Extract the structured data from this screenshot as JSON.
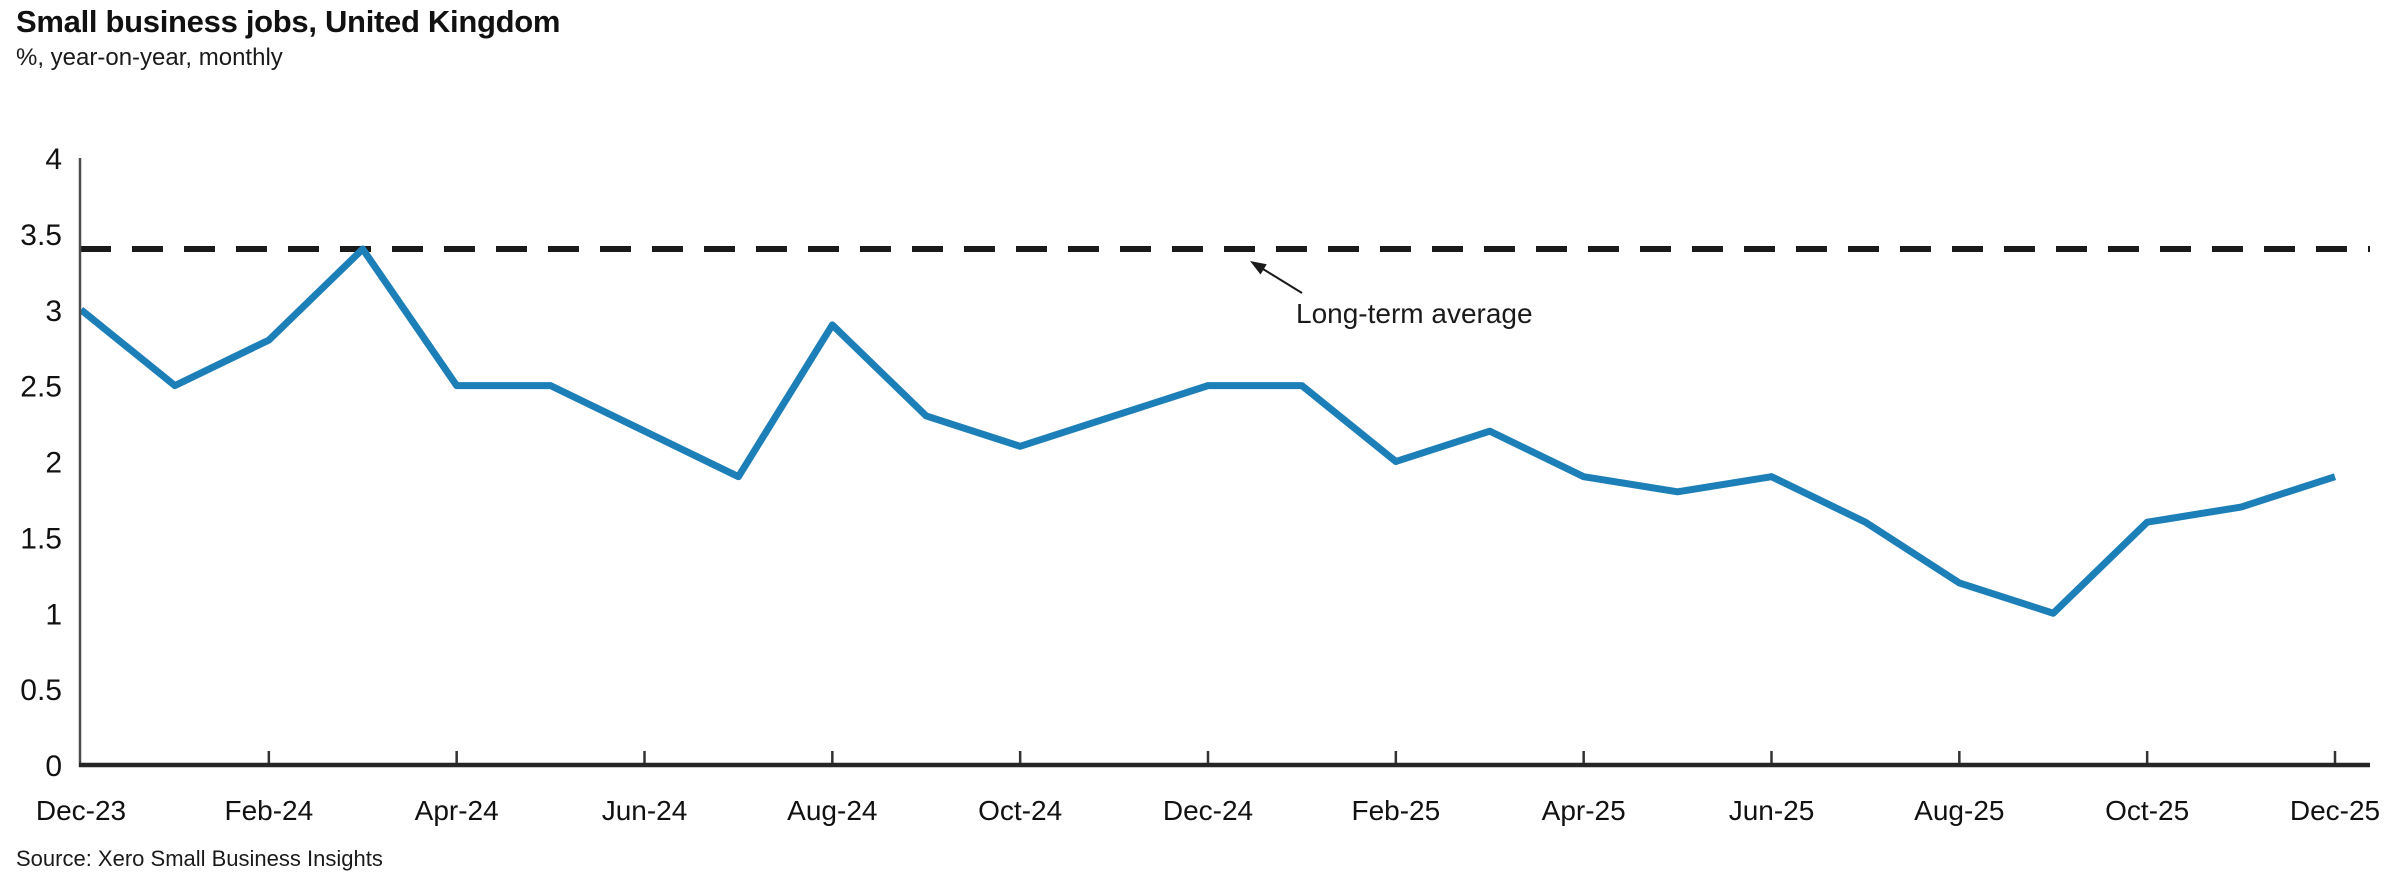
{
  "header": {
    "title": "Small business jobs, United Kingdom",
    "subtitle": "%, year-on-year, monthly"
  },
  "footer": {
    "source": "Source: Xero Small Business Insights"
  },
  "chart_data": {
    "type": "line",
    "title": "Small business jobs, United Kingdom",
    "subtitle": "%, year-on-year, monthly",
    "unit": "%",
    "x": [
      "Dec-23",
      "Jan-24",
      "Feb-24",
      "Mar-24",
      "Apr-24",
      "May-24",
      "Jun-24",
      "Jul-24",
      "Aug-24",
      "Sep-24",
      "Oct-24",
      "Nov-24",
      "Dec-24",
      "Jan-25",
      "Feb-25",
      "Mar-25",
      "Apr-25",
      "May-25",
      "Jun-25",
      "Jul-25",
      "Aug-25",
      "Sep-25",
      "Oct-25",
      "Nov-25",
      "Dec-25"
    ],
    "series": [
      {
        "name": "Small business jobs (% year-on-year)",
        "values": [
          3.0,
          2.5,
          2.8,
          3.4,
          2.5,
          2.5,
          2.2,
          1.9,
          2.9,
          2.3,
          2.1,
          2.3,
          2.5,
          2.5,
          2.0,
          2.2,
          1.9,
          1.8,
          1.9,
          1.6,
          1.2,
          1.0,
          1.6,
          1.7,
          1.9
        ],
        "color": "#1d7fb8"
      }
    ],
    "reference_line": {
      "label": "Long-term average",
      "value": 3.4,
      "color": "#1a1a1a",
      "style": "dashed"
    },
    "x_tick_labels": [
      "Dec-23",
      "Feb-24",
      "Apr-24",
      "Jun-24",
      "Aug-24",
      "Oct-24",
      "Dec-24",
      "Feb-25",
      "Apr-25",
      "Jun-25",
      "Aug-25",
      "Oct-25",
      "Dec-25"
    ],
    "x_label_every": 2,
    "y_ticks": [
      "0",
      "0.5",
      "1",
      "1.5",
      "2",
      "2.5",
      "3",
      "3.5",
      "4"
    ],
    "ylim": [
      0,
      4
    ],
    "grid": false,
    "legend": "none",
    "axis_color": "#333333"
  }
}
